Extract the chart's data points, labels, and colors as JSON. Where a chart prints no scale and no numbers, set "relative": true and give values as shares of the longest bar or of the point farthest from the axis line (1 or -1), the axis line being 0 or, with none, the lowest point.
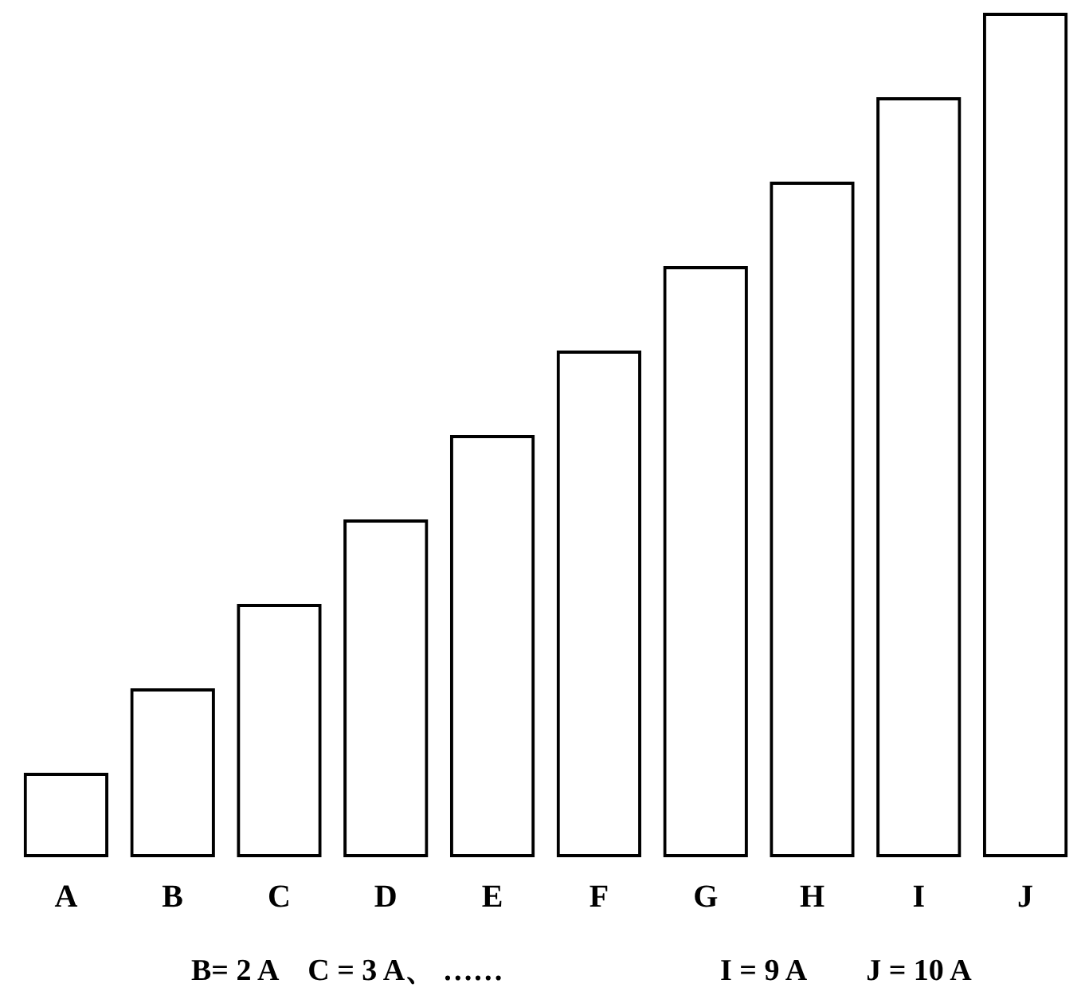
{
  "chart_data": {
    "type": "bar",
    "relative": true,
    "categories": [
      "A",
      "B",
      "C",
      "D",
      "E",
      "F",
      "G",
      "H",
      "I",
      "J"
    ],
    "values": [
      0.1,
      0.2,
      0.3,
      0.4,
      0.5,
      0.6,
      0.7,
      0.8,
      0.9,
      1.0
    ],
    "color": "#000000",
    "grid": false,
    "legend": false,
    "annotations": [
      "B= 2 A　C = 3 A、 ……",
      "I = 9 A　　J = 10 A"
    ]
  }
}
